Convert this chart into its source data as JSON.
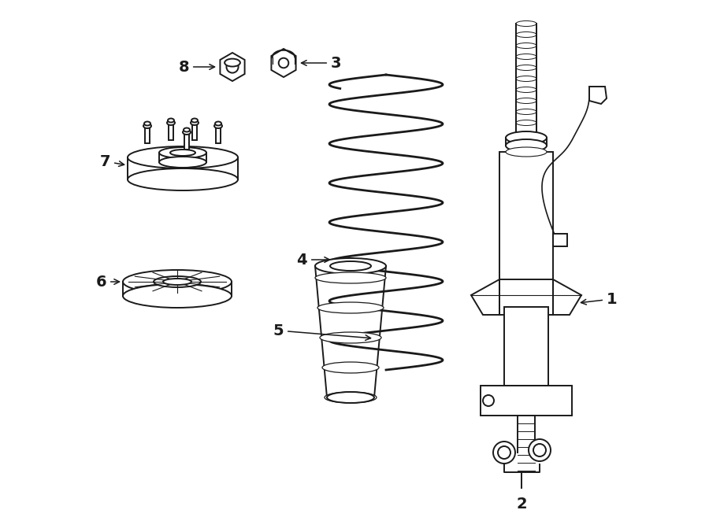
{
  "background_color": "#ffffff",
  "line_color": "#1a1a1a",
  "line_width": 1.4,
  "figure_width": 9.0,
  "figure_height": 6.62,
  "dpi": 100,
  "label_fontsize": 14,
  "label_fontweight": "bold"
}
